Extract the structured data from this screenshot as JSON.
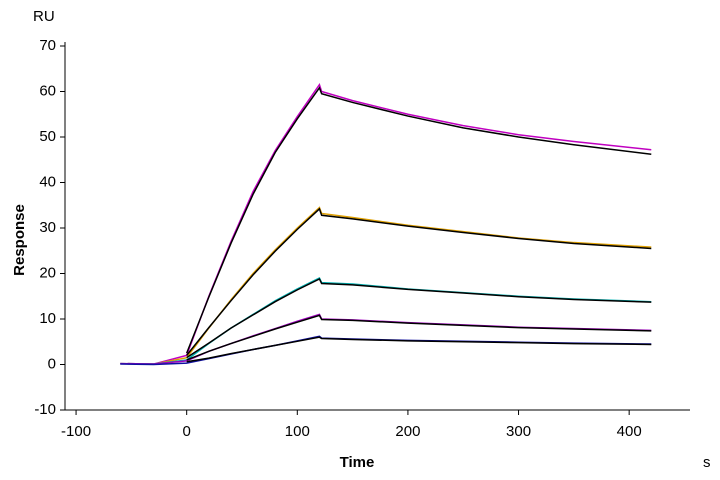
{
  "chart_data": {
    "type": "line",
    "y_unit": "RU",
    "ylabel": "Response",
    "xlabel": "Time",
    "x_unit": "s",
    "xlim": [
      -110,
      455
    ],
    "ylim": [
      -10,
      70
    ],
    "xticks": [
      -100,
      0,
      100,
      200,
      300,
      400
    ],
    "yticks": [
      -10,
      0,
      10,
      20,
      30,
      40,
      50,
      60,
      70
    ],
    "x": [
      -60,
      -30,
      0,
      20,
      40,
      60,
      80,
      100,
      120,
      122,
      150,
      200,
      250,
      300,
      350,
      420
    ],
    "series": [
      {
        "color": "#c000c0",
        "values": [
          0.2,
          0.1,
          2,
          15,
          27,
          38,
          47,
          54.5,
          61.5,
          60,
          58,
          55,
          52.5,
          50.5,
          49,
          47.2
        ]
      },
      {
        "color": "#e0a000",
        "values": [
          0.2,
          0.1,
          1.5,
          8,
          14.2,
          20,
          25.2,
          30,
          34.5,
          33.2,
          32.3,
          30.6,
          29.2,
          27.8,
          26.8,
          25.8
        ]
      },
      {
        "color": "#00b0b0",
        "values": [
          0.2,
          0.1,
          1,
          4.6,
          8,
          11,
          14,
          16.6,
          19,
          18,
          17.7,
          16.6,
          15.8,
          15,
          14.4,
          13.8
        ]
      },
      {
        "color": "#a000c0",
        "values": [
          0.2,
          0.1,
          0.8,
          2.9,
          4.6,
          6.3,
          7.9,
          9.5,
          11,
          10,
          9.8,
          9.2,
          8.7,
          8.2,
          7.9,
          7.5
        ]
      },
      {
        "color": "#1010a0",
        "values": [
          0.1,
          0,
          0.3,
          1.3,
          2.3,
          3.3,
          4.2,
          5.2,
          6.2,
          5.8,
          5.6,
          5.3,
          5.1,
          4.9,
          4.7,
          4.5
        ]
      },
      {
        "color": "#000000",
        "values": [
          null,
          null,
          2.5,
          14.8,
          26.6,
          37.4,
          46.6,
          54,
          60.8,
          59.5,
          57.6,
          54.6,
          52,
          50,
          48.3,
          46.2
        ]
      },
      {
        "color": "#000000",
        "values": [
          null,
          null,
          2,
          8.1,
          14,
          19.7,
          24.9,
          29.7,
          34.2,
          32.8,
          32,
          30.4,
          29,
          27.7,
          26.6,
          25.5
        ]
      },
      {
        "color": "#000000",
        "values": [
          null,
          null,
          1.5,
          4.7,
          8,
          10.9,
          13.8,
          16.4,
          18.8,
          17.8,
          17.5,
          16.5,
          15.7,
          14.9,
          14.3,
          13.7
        ]
      },
      {
        "color": "#000000",
        "values": [
          null,
          null,
          1,
          2.9,
          4.6,
          6.2,
          7.8,
          9.3,
          10.8,
          9.9,
          9.7,
          9.1,
          8.6,
          8.1,
          7.8,
          7.4
        ]
      },
      {
        "color": "#000000",
        "values": [
          null,
          null,
          0.6,
          1.4,
          2.4,
          3.3,
          4.2,
          5.1,
          6,
          5.7,
          5.5,
          5.2,
          5,
          4.8,
          4.6,
          4.4
        ]
      }
    ]
  }
}
